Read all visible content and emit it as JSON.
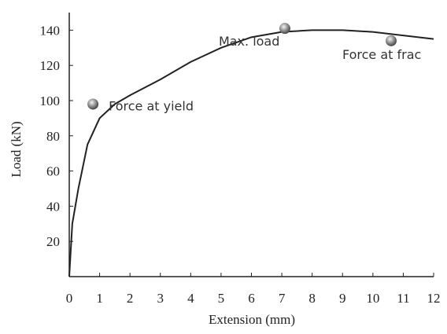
{
  "chart_data": {
    "type": "line",
    "x_label": "Extension (mm)",
    "y_label": "Load (kN)",
    "x": [
      0,
      0.1,
      0.3,
      0.6,
      1,
      1.5,
      2,
      3,
      4,
      5,
      6,
      7,
      8,
      9,
      10,
      11,
      12
    ],
    "values": [
      0,
      30,
      50,
      75,
      90,
      98,
      103,
      112,
      122,
      130,
      136,
      139,
      140,
      140,
      139,
      137,
      135
    ],
    "color": "#222222",
    "points": [
      {
        "x": 0.78,
        "y": 98,
        "label": "Force at yield"
      },
      {
        "x": 7.1,
        "y": 141,
        "label": "Max. load"
      },
      {
        "x": 10.6,
        "y": 134,
        "label": "Force at frac"
      }
    ],
    "xlim": [
      0,
      12
    ],
    "ylim": [
      0,
      150
    ],
    "xticks": [
      0,
      1,
      2,
      3,
      4,
      5,
      6,
      7,
      8,
      9,
      10,
      11,
      12
    ],
    "yticks": [
      20,
      40,
      60,
      80,
      100,
      120,
      140
    ]
  }
}
